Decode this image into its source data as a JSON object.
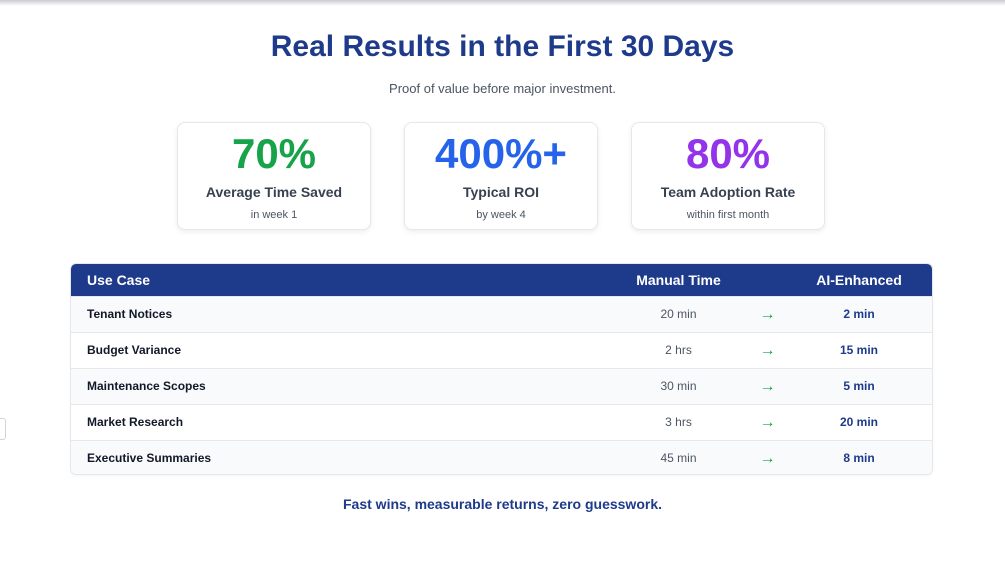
{
  "header": {
    "title": "Real Results in the First 30 Days",
    "subtitle": "Proof of value before major investment."
  },
  "stats": [
    {
      "value": "70%",
      "label": "Average Time Saved",
      "sub": "in week 1",
      "color": "#16a34a"
    },
    {
      "value": "400%+",
      "label": "Typical ROI",
      "sub": "by week 4",
      "color": "#2563eb"
    },
    {
      "value": "80%",
      "label": "Team Adoption Rate",
      "sub": "within first month",
      "color": "#9333ea"
    }
  ],
  "table": {
    "headers": {
      "use_case": "Use Case",
      "manual": "Manual Time",
      "ai": "AI-Enhanced"
    },
    "arrow_icon": "arrow-right-icon",
    "rows": [
      {
        "use_case": "Tenant Notices",
        "manual": "20 min",
        "arrow": "→",
        "ai": "2 min"
      },
      {
        "use_case": "Budget Variance",
        "manual": "2 hrs",
        "arrow": "→",
        "ai": "15 min"
      },
      {
        "use_case": "Maintenance Scopes",
        "manual": "30 min",
        "arrow": "→",
        "ai": "5 min"
      },
      {
        "use_case": "Market Research",
        "manual": "3 hrs",
        "arrow": "→",
        "ai": "20 min"
      },
      {
        "use_case": "Executive Summaries",
        "manual": "45 min",
        "arrow": "→",
        "ai": "8 min"
      }
    ]
  },
  "footer": {
    "tagline": "Fast wins, measurable returns, zero guesswork."
  },
  "colors": {
    "primary": "#1e3a8a",
    "arrow": "#16a34a"
  }
}
